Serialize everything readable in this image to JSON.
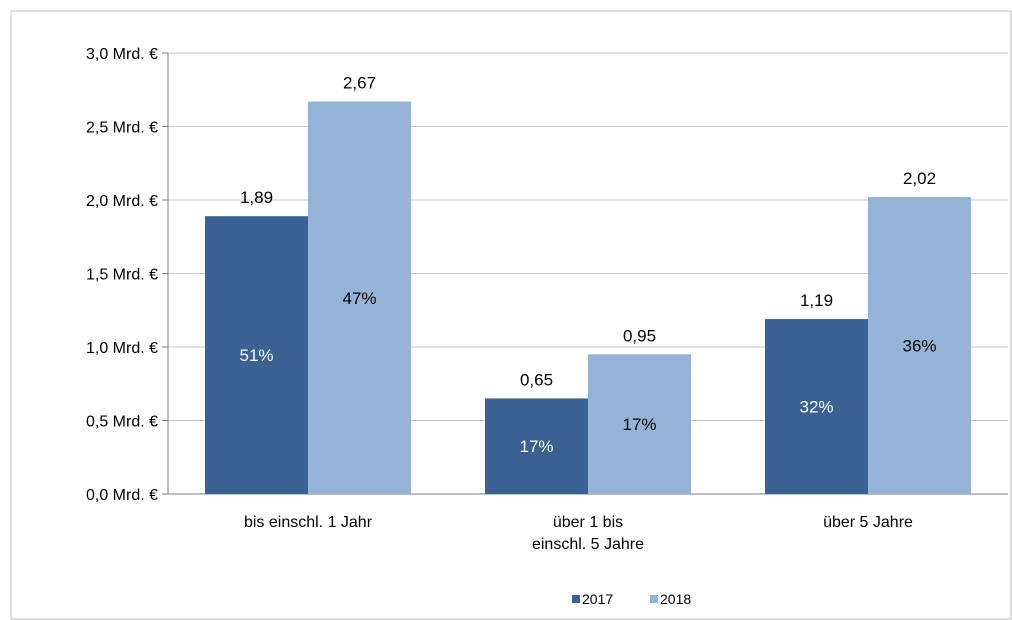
{
  "chart_data": {
    "type": "bar",
    "categories": [
      [
        "bis einschl. 1 Jahr"
      ],
      [
        "über 1 bis",
        "einschl. 5 Jahre"
      ],
      [
        "über 5 Jahre"
      ]
    ],
    "series": [
      {
        "name": "2017",
        "color": "#3a6192",
        "values": [
          1.89,
          0.65,
          1.19
        ],
        "value_labels": [
          "1,89",
          "0,65",
          "1,19"
        ],
        "share_labels": [
          "51%",
          "17%",
          "32%"
        ],
        "share_label_color": "#ffffff"
      },
      {
        "name": "2018",
        "color": "#95b3d7",
        "values": [
          2.67,
          0.95,
          2.02
        ],
        "value_labels": [
          "2,67",
          "0,95",
          "2,02"
        ],
        "share_labels": [
          "47%",
          "17%",
          "36%"
        ],
        "share_label_color": "#000000"
      }
    ],
    "y_ticks": [
      0,
      0.5,
      1.0,
      1.5,
      2.0,
      2.5,
      3.0
    ],
    "y_tick_labels": [
      "0,0 Mrd. €",
      "0,5 Mrd. €",
      "1,0 Mrd. €",
      "1,5 Mrd. €",
      "2,0 Mrd. €",
      "2,5 Mrd. €",
      "3,0 Mrd. €"
    ],
    "ylim": [
      0,
      3.0
    ],
    "grid": true,
    "gridline_color": "#c8c8c8",
    "legend_position": "bottom-center",
    "title": "",
    "xlabel": "",
    "ylabel": ""
  }
}
